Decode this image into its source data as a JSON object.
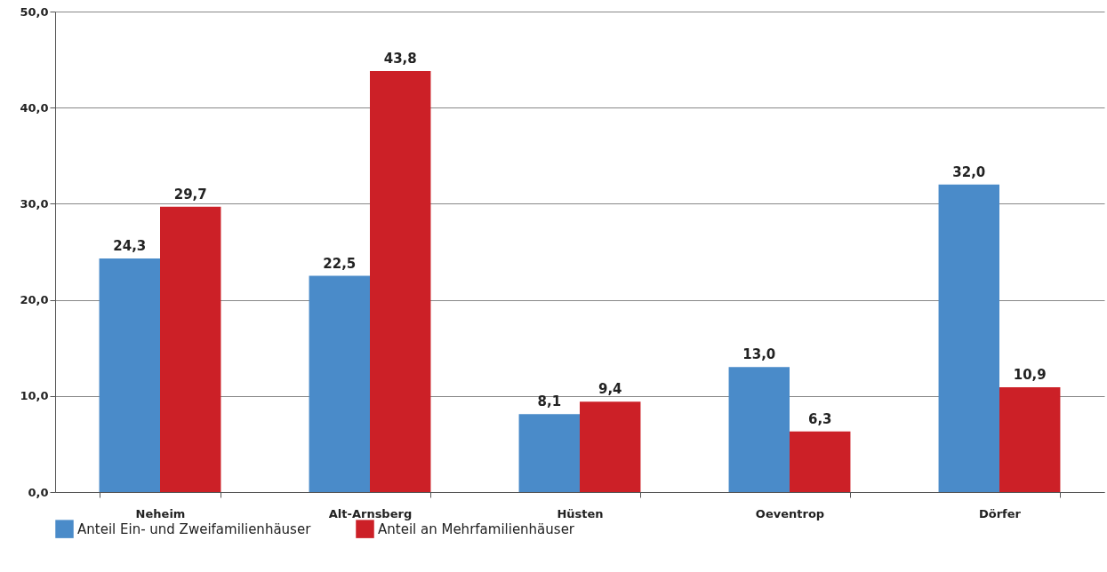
{
  "chart_data": {
    "type": "bar",
    "categories": [
      "Neheim",
      "Alt-Arnsberg",
      "Hüsten",
      "Oeventrop",
      "Dörfer"
    ],
    "series": [
      {
        "name": "Anteil Ein- und Zweifamilienhäuser",
        "color": "#4a8bc9",
        "values": [
          24.3,
          22.5,
          8.1,
          13.0,
          32.0
        ],
        "value_labels": [
          "24,3",
          "22,5",
          "8,1",
          "13,0",
          "32,0"
        ]
      },
      {
        "name": "Anteil an Mehrfamilienhäuser",
        "color": "#cc2027",
        "values": [
          29.7,
          43.8,
          9.4,
          6.3,
          10.9
        ],
        "value_labels": [
          "29,7",
          "43,8",
          "9,4",
          "6,3",
          "10,9"
        ]
      }
    ],
    "ylim": [
      0,
      50
    ],
    "yticks": [
      {
        "value": 0,
        "label": "0,0"
      },
      {
        "value": 10,
        "label": "10,0"
      },
      {
        "value": 20,
        "label": "20,0"
      },
      {
        "value": 30,
        "label": "30,0"
      },
      {
        "value": 40,
        "label": "40,0"
      },
      {
        "value": 50,
        "label": "50,0"
      }
    ],
    "grid": "y",
    "legend": "bottom left"
  }
}
